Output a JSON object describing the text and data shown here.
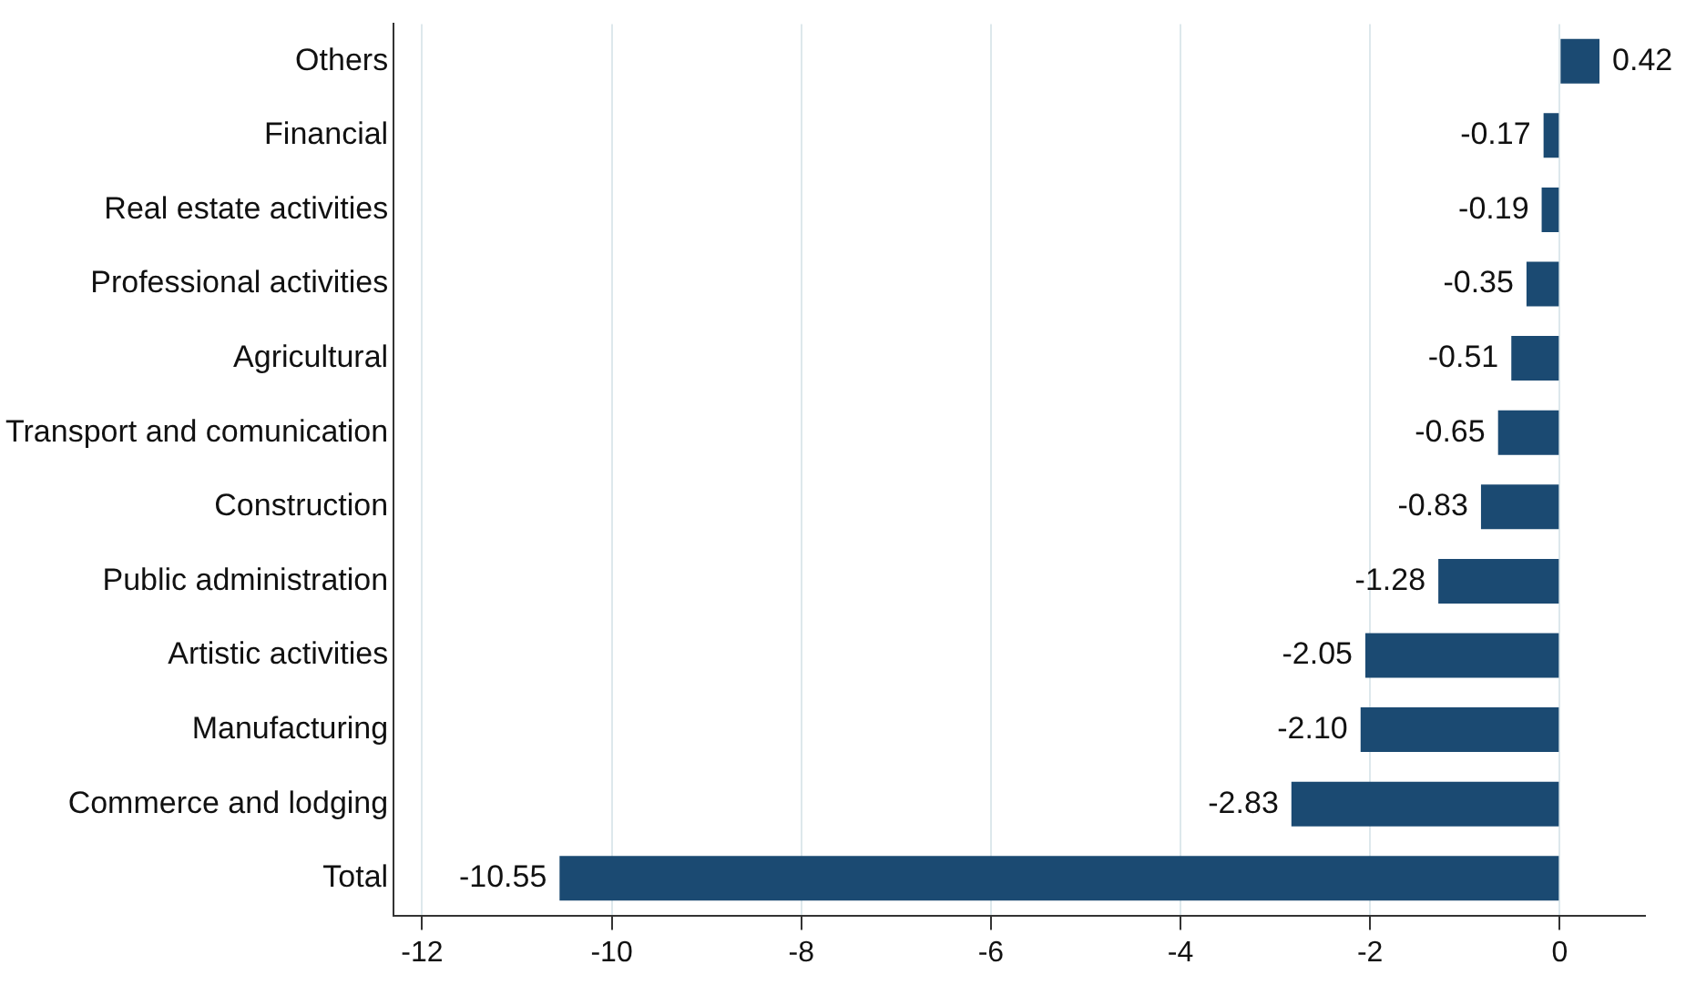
{
  "chart_data": {
    "type": "bar",
    "orientation": "horizontal",
    "categories": [
      "Others",
      "Financial",
      "Real estate activities",
      "Professional activities",
      "Agricultural",
      "Transport and comunication",
      "Construction",
      "Public administration",
      "Artistic activities",
      "Manufacturing",
      "Commerce and lodging",
      "Total"
    ],
    "values": [
      0.42,
      -0.17,
      -0.19,
      -0.35,
      -0.51,
      -0.65,
      -0.83,
      -1.28,
      -2.05,
      -2.1,
      -2.83,
      -10.55
    ],
    "value_labels": [
      "0.42",
      "-0.17",
      "-0.19",
      "-0.35",
      "-0.51",
      "-0.65",
      "-0.83",
      "-1.28",
      "-2.05",
      "-2.10",
      "-2.83",
      "-10.55"
    ],
    "color": "#1b4a72",
    "xlim": [
      -12.3,
      0.9
    ],
    "xticks": [
      -12,
      -10,
      -8,
      -6,
      -4,
      -2,
      0
    ],
    "grid": "x",
    "legend": false
  }
}
